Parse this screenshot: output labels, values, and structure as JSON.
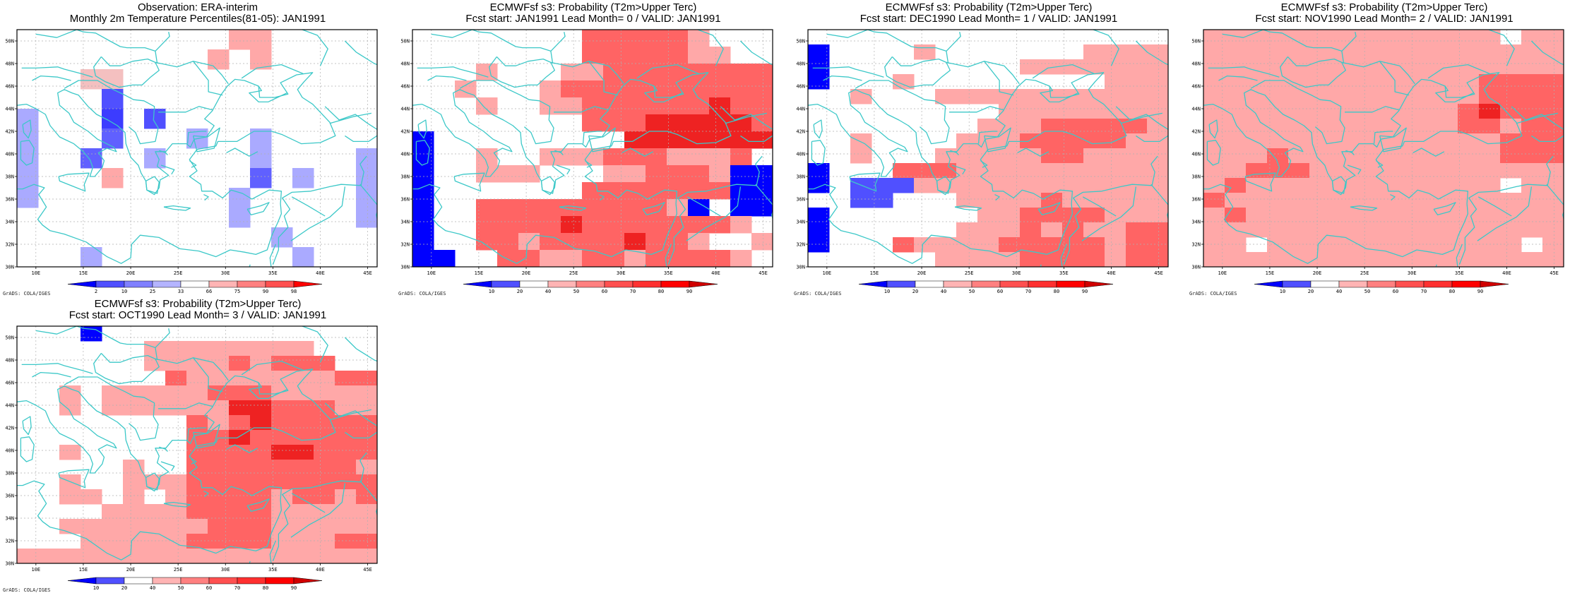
{
  "map": {
    "lon_range": [
      8,
      46
    ],
    "lat_range": [
      30,
      51
    ],
    "lon_ticks": [
      "10E",
      "15E",
      "20E",
      "25E",
      "30E",
      "35E",
      "40E",
      "45E"
    ],
    "lat_ticks": [
      "30N",
      "32N",
      "34N",
      "36N",
      "38N",
      "40N",
      "42N",
      "44N",
      "46N",
      "48N",
      "50N"
    ],
    "grid_lines": "dotted",
    "coastline_color": "#3cc8c8",
    "credit": "GrADS: COLA/IGES"
  },
  "panels": [
    {
      "title1": "Observation: ERA-interim",
      "title2": "Monthly 2m Temperature Percentiles(81-05): JAN1991",
      "colorbar_labels": [
        "2",
        "10",
        "25",
        "33",
        "66",
        "75",
        "90",
        "98"
      ],
      "colorbar_colors": [
        "#0000ff",
        "#5050ff",
        "#8080ff",
        "#b4b4ff",
        "#ffffff",
        "#ffb4b4",
        "#ff8080",
        "#ff5050",
        "#ff0000"
      ],
      "grid_rows": [
        "..........qq.....",
        ".........q.q.....",
        "...pp............",
        "....b............",
        "d...c.b..........",
        "d...e...d..d.....",
        "d..e..d....d....d",
        "d...q......e.d..d",
        "d.........d.....d",
        "..........d.....d",
        "............d....",
        "...d.........d..."
      ]
    },
    {
      "title1": "ECMWFsf s3: Probability (T2m>Upper Terc)",
      "title2": "Fcst start: JAN1991   Lead Month= 0 / VALID: JAN1991",
      "colorbar_labels": [
        "10",
        "20",
        "40",
        "50",
        "60",
        "70",
        "80",
        "90"
      ],
      "colorbar_colors": [
        "#0000ff",
        "#5050ff",
        "#ffffff",
        "#ffb4b4",
        "#ff8080",
        "#ff5050",
        "#ff3030",
        "#ff0000",
        "#d00000"
      ],
      "grid_rows": [
        "........rrrrrq...",
        "........rrrrrqq..",
        "...q...qqrrrrrrrr",
        "..q...qrrrrrrrrrr",
        "...q..qqrrrrrrsrr",
        "........rrrsssssr",
        "a.........sssssss",
        "a..q..qqqrrrqqqr.",
        "a..qqq...qqrrrqaa",
        "a.......rrrrrrraa",
        "a..rrrrrrrrrqa.aa",
        "a..rrrrsrrrrrrrq.",
        "a..rrqrrrrsrrq..q",
        "aa..rrqqrrqrrrrq."
      ]
    },
    {
      "title1": "ECMWFsf s3: Probability (T2m>Upper Terc)",
      "title2": "Fcst start: DEC1990   Lead Month= 1 / VALID: JAN1991",
      "colorbar_labels": [
        "10",
        "20",
        "40",
        "50",
        "60",
        "70",
        "80",
        "90"
      ],
      "colorbar_colors": [
        "#0000ff",
        "#5050ff",
        "#ffffff",
        "#ffb4b4",
        "#ff8080",
        "#ff5050",
        "#ff3030",
        "#ff0000",
        "#d00000"
      ],
      "grid_rows": [
        ".................",
        "a....q.......qqqq",
        "a.........qqqqqqq",
        "a...q.........qqq",
        "..q...qqqqqqqqqqq",
        ".........qqqqqqqq",
        "........qqqrrrrrq",
        "..q....qqqrrrrrqq",
        "..q...qqqqqrrqqqq",
        "a...rrrqqqqqqqqqq",
        "a.bbbqqqqqqqqqqqq",
        "..bb...qqqqrqqqqq",
        "a.......qqrrrrqqq",
        "a......qqqrqrqqrr",
        "a...rqqqqrrrrrqrr",
        "......qqqqrrrrqrr"
      ]
    },
    {
      "title1": "ECMWFsf s3: Probability (T2m>Upper Terc)",
      "title2": "Fcst start: NOV1990   Lead Month= 2 / VALID: JAN1991",
      "colorbar_labels": [
        "10",
        "20",
        "40",
        "50",
        "60",
        "70",
        "80",
        "90"
      ],
      "colorbar_colors": [
        "#0000ff",
        "#5050ff",
        "#ffffff",
        "#ffb4b4",
        "#ff8080",
        "#ff5050",
        "#ff3030",
        "#ff0000",
        "#d00000"
      ],
      "grid_rows": [
        "qqqqqqqqqqqqqq.qq",
        "qqqqqqqqqqqqqqqqq",
        "qqqqqqqqqqqqqqqqq",
        "qqqqqqqqqqqqqrrrr",
        "qqqqqqqqqqqqqrrrr",
        "qqqqqqqqqqqqrsrrr",
        "qqqqqqqqqqqqrrqrr",
        "qqqqqqqqqqqqqqrrr",
        "qqqrqqqqqqqqqqrrr",
        "qqrrrqqqqqqqqqqqq",
        "qrqqqqqqqqqqqq.qq",
        "rqqqqqqqqqqqqqqqq",
        "qrqqqqqqqqqqqqqqq",
        "qqqqqqqqqqqqqqqqq",
        "qq.qqqqqqqqqqqq.q",
        "qqqqqqqqqqqqqqqqq"
      ]
    },
    {
      "title1": "ECMWFsf s3: Probability (T2m>Upper Terc)",
      "title2": "Fcst start: OCT1990   Lead Month= 3 / VALID: JAN1991",
      "colorbar_labels": [
        "10",
        "20",
        "40",
        "50",
        "60",
        "70",
        "80",
        "90"
      ],
      "colorbar_colors": [
        "#0000ff",
        "#5050ff",
        "#ffffff",
        "#ffb4b4",
        "#ff8080",
        "#ff5050",
        "#ff3030",
        "#ff0000",
        "#d00000"
      ],
      "grid_rows": [
        "...a.............",
        "......qqqqqqqq...",
        "......qqqqrqrrr..",
        ".......rqqqqqqqrr",
        "..q.qqqqqrrrqqqqq",
        "..q.qqqqqqssrrrqq",
        "........rqrsrrrrr",
        "........rrsrrrrrr",
        "..q.....rrrrssrrr",
        ".....q..rrrrrrrrq",
        "..q..qqqrrrrrrrrr",
        "..qq.q.qrrrrqrrqr",
        "....qqqqrrrrqqqqq",
        "..qqqqqqqrrrqqqqq",
        "...qqqqqrrrrqqqrr",
        "qqqqqqqqqqqqqqqqq"
      ]
    }
  ]
}
